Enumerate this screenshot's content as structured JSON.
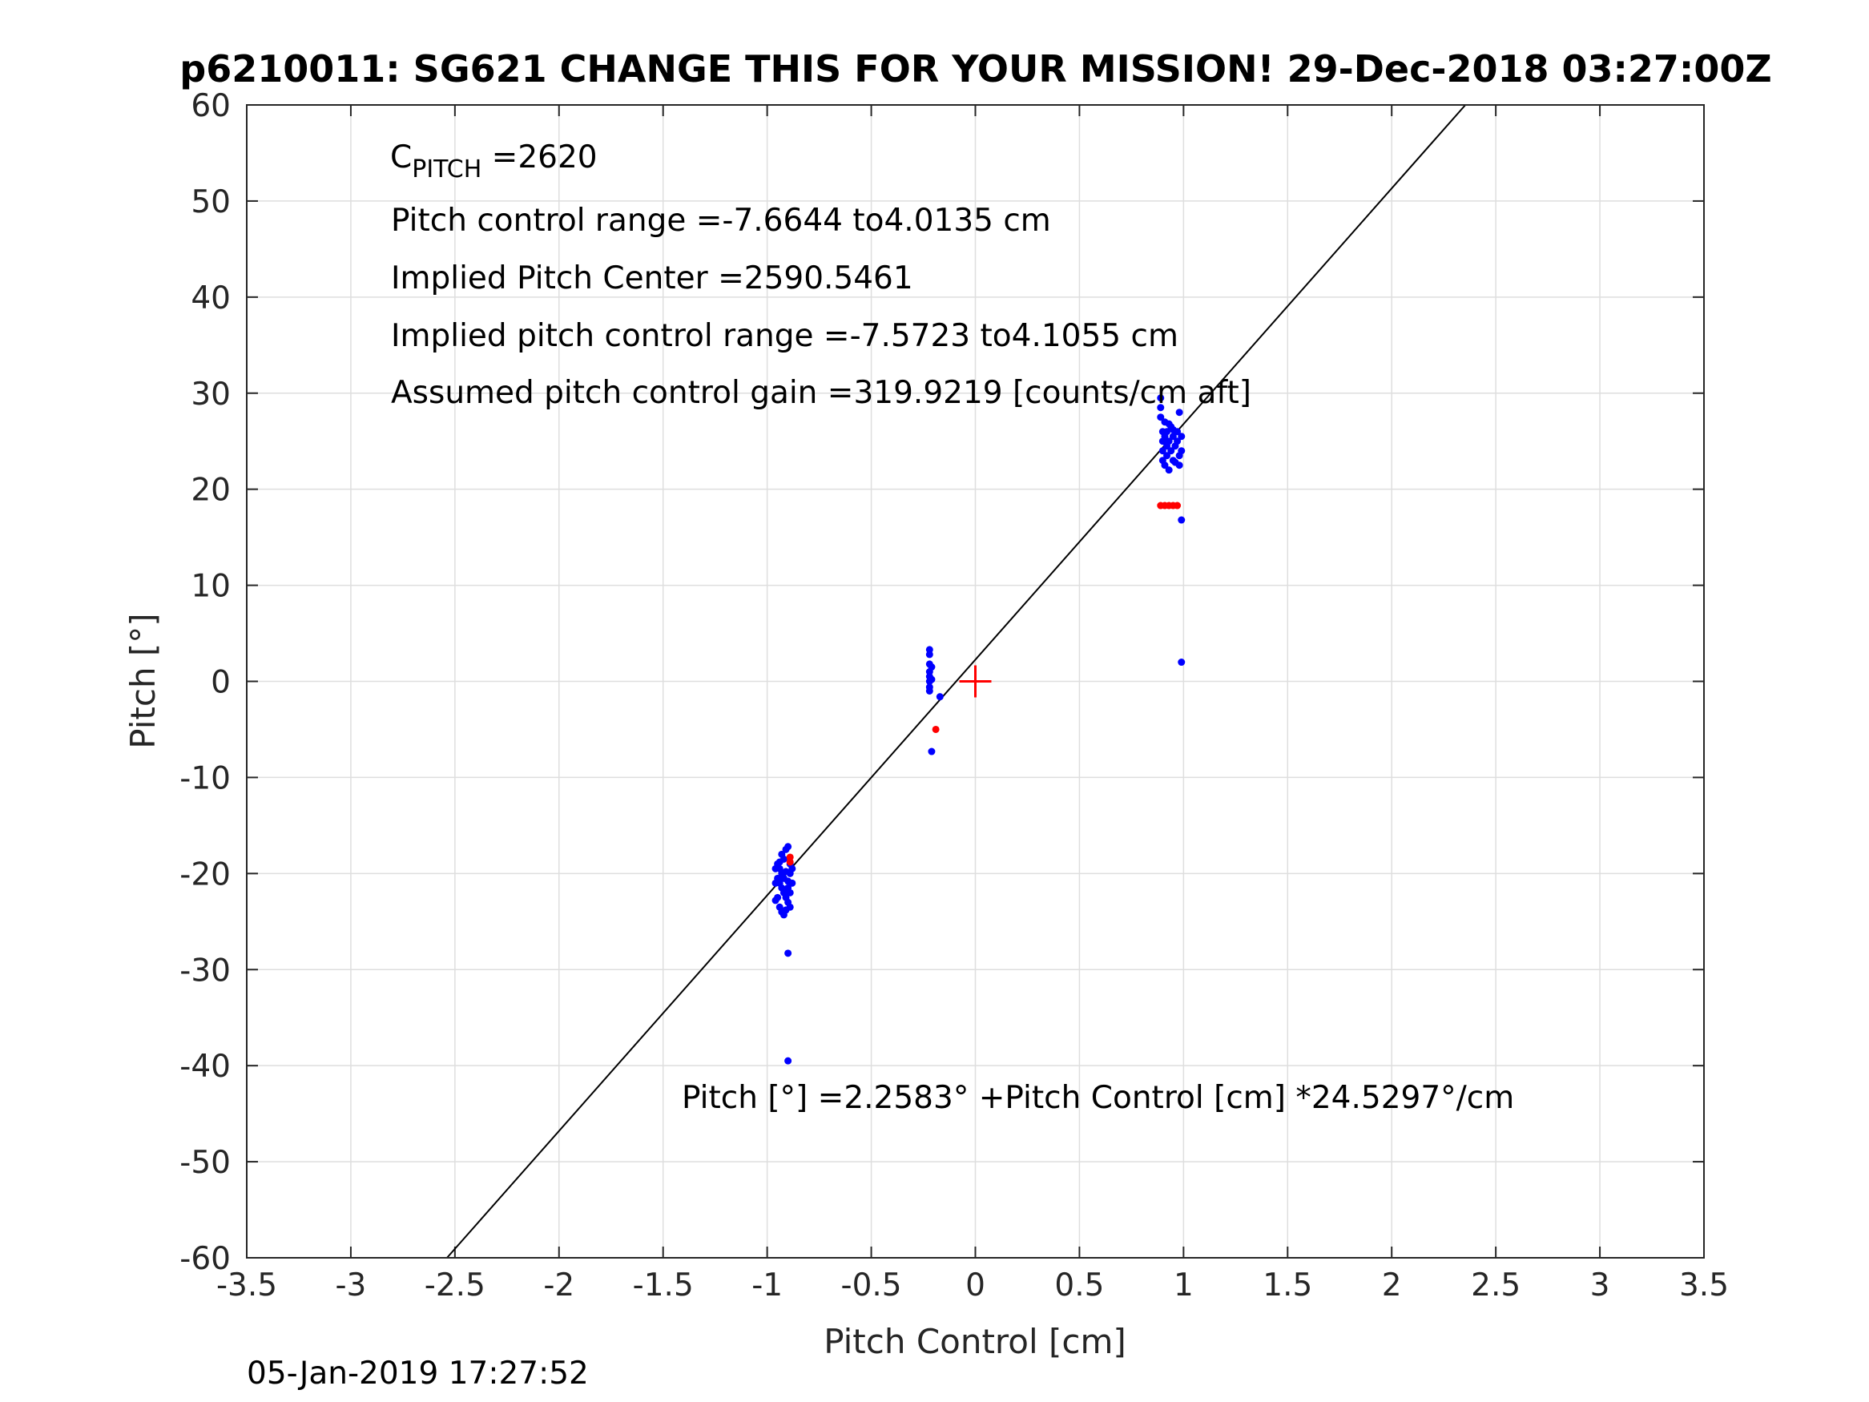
{
  "chart_data": {
    "type": "scatter",
    "title": "p6210011: SG621 CHANGE THIS FOR YOUR MISSION! 29-Dec-2018 03:27:00Z",
    "xlabel": "Pitch Control [cm]",
    "ylabel": "Pitch [°]",
    "xlim": [
      -3.5,
      3.5
    ],
    "ylim": [
      -60,
      60
    ],
    "xticks": [
      -3.5,
      -3,
      -2.5,
      -2,
      -1.5,
      -1,
      -0.5,
      0,
      0.5,
      1,
      1.5,
      2,
      2.5,
      3,
      3.5
    ],
    "xtick_labels": [
      "-3.5",
      "-3",
      "-2.5",
      "-2",
      "-1.5",
      "-1",
      "-0.5",
      "0",
      "0.5",
      "1",
      "1.5",
      "2",
      "2.5",
      "3",
      "3.5"
    ],
    "yticks": [
      60,
      50,
      40,
      30,
      20,
      10,
      0,
      -10,
      -20,
      -30,
      -40,
      -50,
      -60
    ],
    "ytick_labels": [
      "60",
      "50",
      "40",
      "30",
      "20",
      "10",
      "0",
      "-10",
      "-20",
      "-30",
      "-40",
      "-50",
      "-60"
    ],
    "grid": true,
    "fit_line": {
      "intercept": 2.2583,
      "slope": 24.5297,
      "color": "#000000"
    },
    "center_marker": {
      "x": 0,
      "y": 0,
      "color": "#ff0000",
      "symbol": "plus"
    },
    "series": [
      {
        "color": "#0000ff",
        "points": [
          [
            -0.95,
            -19.0
          ],
          [
            -0.94,
            -19.5
          ],
          [
            -0.93,
            -20.0
          ],
          [
            -0.92,
            -18.5
          ],
          [
            -0.91,
            -17.5
          ],
          [
            -0.9,
            -17.2
          ],
          [
            -0.95,
            -20.5
          ],
          [
            -0.94,
            -21.0
          ],
          [
            -0.93,
            -21.5
          ],
          [
            -0.92,
            -22.0
          ],
          [
            -0.91,
            -22.5
          ],
          [
            -0.9,
            -23.0
          ],
          [
            -0.95,
            -22.5
          ],
          [
            -0.94,
            -23.5
          ],
          [
            -0.93,
            -24.0
          ],
          [
            -0.92,
            -24.3
          ],
          [
            -0.91,
            -23.8
          ],
          [
            -0.9,
            -21.5
          ],
          [
            -0.89,
            -20.0
          ],
          [
            -0.89,
            -19.0
          ],
          [
            -0.89,
            -22.0
          ],
          [
            -0.89,
            -23.5
          ],
          [
            -0.96,
            -19.5
          ],
          [
            -0.96,
            -21.0
          ],
          [
            -0.96,
            -22.8
          ],
          [
            -0.93,
            -18.0
          ],
          [
            -0.91,
            -19.8
          ],
          [
            -0.9,
            -20.8
          ],
          [
            -0.92,
            -20.5
          ],
          [
            -0.94,
            -18.8
          ],
          [
            -0.88,
            -19.5
          ],
          [
            -0.88,
            -21.0
          ],
          [
            -0.9,
            -28.3
          ],
          [
            -0.9,
            -39.5
          ],
          [
            -0.22,
            3.3
          ],
          [
            -0.22,
            2.8
          ],
          [
            -0.22,
            1.8
          ],
          [
            -0.22,
            1.0
          ],
          [
            -0.22,
            0.5
          ],
          [
            -0.22,
            0.0
          ],
          [
            -0.22,
            -0.6
          ],
          [
            -0.22,
            -1.0
          ],
          [
            -0.21,
            1.5
          ],
          [
            -0.21,
            0.2
          ],
          [
            -0.17,
            -1.6
          ],
          [
            -0.21,
            -7.3
          ],
          [
            0.89,
            29.5
          ],
          [
            0.89,
            28.5
          ],
          [
            0.89,
            27.5
          ],
          [
            0.9,
            26.0
          ],
          [
            0.9,
            25.0
          ],
          [
            0.9,
            24.0
          ],
          [
            0.9,
            23.0
          ],
          [
            0.91,
            22.5
          ],
          [
            0.91,
            25.5
          ],
          [
            0.92,
            24.5
          ],
          [
            0.92,
            23.5
          ],
          [
            0.92,
            26.0
          ],
          [
            0.93,
            22.0
          ],
          [
            0.93,
            25.0
          ],
          [
            0.94,
            24.0
          ],
          [
            0.94,
            26.5
          ],
          [
            0.95,
            23.0
          ],
          [
            0.95,
            25.5
          ],
          [
            0.96,
            24.5
          ],
          [
            0.96,
            22.8
          ],
          [
            0.97,
            26.0
          ],
          [
            0.97,
            25.0
          ],
          [
            0.98,
            23.5
          ],
          [
            0.98,
            22.5
          ],
          [
            0.98,
            28.0
          ],
          [
            0.99,
            25.5
          ],
          [
            0.99,
            24.0
          ],
          [
            0.91,
            27.0
          ],
          [
            0.93,
            26.8
          ],
          [
            0.95,
            26.2
          ],
          [
            0.99,
            16.8
          ],
          [
            0.99,
            2.0
          ]
        ]
      },
      {
        "color": "#ff0000",
        "points": [
          [
            -0.89,
            -18.3
          ],
          [
            -0.89,
            -18.8
          ],
          [
            -0.19,
            -5.0
          ],
          [
            0.89,
            18.3
          ],
          [
            0.91,
            18.3
          ],
          [
            0.93,
            18.3
          ],
          [
            0.95,
            18.3
          ],
          [
            0.97,
            18.3
          ]
        ]
      }
    ],
    "annotations": {
      "cpitch_main": "C",
      "cpitch_sub": "PITCH",
      "cpitch_value": " =2620",
      "range": "Pitch control range =-7.6644 to4.0135 cm",
      "center": "Implied Pitch Center =2590.5461",
      "implied_range": "Implied pitch control range =-7.5723 to4.1055 cm",
      "gain": "Assumed pitch control gain =319.9219 [counts/cm aft]",
      "equation": "Pitch [°] =2.2583° +Pitch Control [cm] *24.5297°/cm"
    },
    "footer_timestamp": "05-Jan-2019 17:27:52"
  }
}
